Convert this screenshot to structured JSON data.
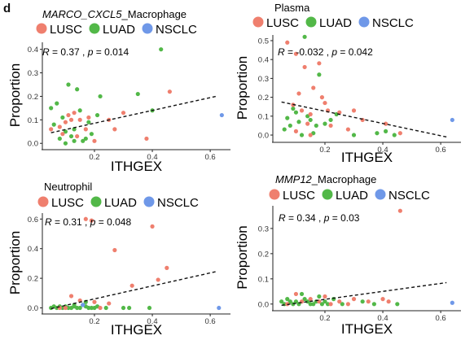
{
  "panel_label": "d",
  "legend": [
    {
      "name": "LUSC",
      "color": "#ef7f6e"
    },
    {
      "name": "LUAD",
      "color": "#52b848"
    },
    {
      "name": "NSCLC",
      "color": "#6f98e8"
    }
  ],
  "chart_data": [
    {
      "type": "scatter",
      "title_italic": "MARCO_CXCL5",
      "title_rest": "_Macrophage",
      "annotation_parts": [
        "R",
        " = 0.37 , ",
        "p",
        " = 0.014"
      ],
      "xlabel": "ITHGEX",
      "ylabel": "Proportion",
      "xlim": [
        0.02,
        0.67
      ],
      "ylim": [
        -0.02,
        0.43
      ],
      "xticks": [
        "0.2",
        "0.4",
        "0.6"
      ],
      "yticks": [
        "0.0",
        "0.1",
        "0.2",
        "0.3",
        "0.4"
      ],
      "xtick_values": [
        0.2,
        0.4,
        0.6
      ],
      "ytick_values": [
        0,
        0.1,
        0.2,
        0.3,
        0.4
      ],
      "trend": [
        [
          0.05,
          0.045
        ],
        [
          0.62,
          0.2
        ]
      ],
      "series": [
        {
          "name": "LUSC",
          "points": [
            [
              0.05,
              0.06
            ],
            [
              0.08,
              0.07
            ],
            [
              0.09,
              0.04
            ],
            [
              0.1,
              0.09
            ],
            [
              0.11,
              0.12
            ],
            [
              0.12,
              0.1
            ],
            [
              0.13,
              0.13
            ],
            [
              0.14,
              0.03
            ],
            [
              0.15,
              0.1
            ],
            [
              0.17,
              0.06
            ],
            [
              0.18,
              0.11
            ],
            [
              0.25,
              0.1
            ],
            [
              0.27,
              0.06
            ],
            [
              0.3,
              0.13
            ],
            [
              0.38,
              0.02
            ],
            [
              0.46,
              0.22
            ],
            [
              0.2,
              0.01
            ]
          ]
        },
        {
          "name": "LUAD",
          "points": [
            [
              0.05,
              0.15
            ],
            [
              0.06,
              0.08
            ],
            [
              0.07,
              0.17
            ],
            [
              0.08,
              0.02
            ],
            [
              0.09,
              0.11
            ],
            [
              0.1,
              0.05
            ],
            [
              0.1,
              0.0
            ],
            [
              0.11,
              0.25
            ],
            [
              0.12,
              0.03
            ],
            [
              0.13,
              0.06
            ],
            [
              0.14,
              0.23
            ],
            [
              0.15,
              0.14
            ],
            [
              0.16,
              0.01
            ],
            [
              0.17,
              0.02
            ],
            [
              0.18,
              0.09
            ],
            [
              0.19,
              0.04
            ],
            [
              0.21,
              0.12
            ],
            [
              0.22,
              0.2
            ],
            [
              0.35,
              0.21
            ],
            [
              0.43,
              0.4
            ],
            [
              0.4,
              0.14
            ],
            [
              0.13,
              0.01
            ]
          ]
        },
        {
          "name": "NSCLC",
          "points": [
            [
              0.64,
              0.12
            ]
          ]
        }
      ]
    },
    {
      "type": "scatter",
      "title_italic": "",
      "title_rest": "Plasma",
      "annotation_parts": [
        "R",
        " = -0.032 , ",
        "p",
        " = 0.042"
      ],
      "xlabel": "ITHGEX",
      "ylabel": "Proportion",
      "xlim": [
        0.02,
        0.67
      ],
      "ylim": [
        -0.03,
        0.53
      ],
      "xticks": [
        "0.2",
        "0.4",
        "0.6"
      ],
      "yticks": [
        "0.0",
        "0.1",
        "0.2",
        "0.3",
        "0.4",
        "0.5"
      ],
      "xtick_values": [
        0.2,
        0.4,
        0.6
      ],
      "ytick_values": [
        0,
        0.1,
        0.2,
        0.3,
        0.4,
        0.5
      ],
      "trend": [
        [
          0.05,
          0.175
        ],
        [
          0.62,
          -0.01
        ]
      ],
      "series": [
        {
          "name": "LUSC",
          "points": [
            [
              0.07,
              0.49
            ],
            [
              0.09,
              0.16
            ],
            [
              0.1,
              0.43
            ],
            [
              0.11,
              0.22
            ],
            [
              0.12,
              0.13
            ],
            [
              0.13,
              0.36
            ],
            [
              0.14,
              0.06
            ],
            [
              0.15,
              0.11
            ],
            [
              0.16,
              0.25
            ],
            [
              0.18,
              0.38
            ],
            [
              0.19,
              0.2
            ],
            [
              0.2,
              0.17
            ],
            [
              0.21,
              0.13
            ],
            [
              0.22,
              0.05
            ],
            [
              0.25,
              0.12
            ],
            [
              0.28,
              0.03
            ],
            [
              0.3,
              0.13
            ],
            [
              0.33,
              0.08
            ],
            [
              0.41,
              0.06
            ],
            [
              0.46,
              0.01
            ],
            [
              0.1,
              0.02
            ],
            [
              0.15,
              0.0
            ]
          ]
        },
        {
          "name": "LUAD",
          "points": [
            [
              0.06,
              0.03
            ],
            [
              0.07,
              0.09
            ],
            [
              0.08,
              0.05
            ],
            [
              0.09,
              0.14
            ],
            [
              0.1,
              0.12
            ],
            [
              0.11,
              0.07
            ],
            [
              0.13,
              0.52
            ],
            [
              0.14,
              0.1
            ],
            [
              0.15,
              0.08
            ],
            [
              0.16,
              0.01
            ],
            [
              0.17,
              0.05
            ],
            [
              0.18,
              0.32
            ],
            [
              0.2,
              0.06
            ],
            [
              0.22,
              0.08
            ],
            [
              0.24,
              0.11
            ],
            [
              0.38,
              0.01
            ],
            [
              0.41,
              0.02
            ],
            [
              0.44,
              0.0
            ],
            [
              0.3,
              0.0
            ],
            [
              0.12,
              0.0
            ]
          ]
        },
        {
          "name": "NSCLC",
          "points": [
            [
              0.64,
              0.08
            ]
          ]
        }
      ]
    },
    {
      "type": "scatter",
      "title_italic": "",
      "title_rest": "Neutrophil",
      "annotation_parts": [
        "R",
        " = 0.31 , ",
        "p",
        " = 0.048"
      ],
      "xlabel": "ITHGEX",
      "ylabel": "Proportion",
      "xlim": [
        0.02,
        0.67
      ],
      "ylim": [
        -0.03,
        0.64
      ],
      "xticks": [
        "0.2",
        "0.4",
        "0.6"
      ],
      "yticks": [
        "0.0",
        "0.2",
        "0.4",
        "0.6"
      ],
      "xtick_values": [
        0.2,
        0.4,
        0.6
      ],
      "ytick_values": [
        0,
        0.2,
        0.4,
        0.6
      ],
      "trend": [
        [
          0.05,
          -0.005
        ],
        [
          0.62,
          0.245
        ]
      ],
      "series": [
        {
          "name": "LUSC",
          "points": [
            [
              0.17,
              0.6
            ],
            [
              0.19,
              0.59
            ],
            [
              0.27,
              0.39
            ],
            [
              0.4,
              0.55
            ],
            [
              0.45,
              0.27
            ],
            [
              0.33,
              0.15
            ],
            [
              0.42,
              0.19
            ],
            [
              0.12,
              0.08
            ],
            [
              0.15,
              0.05
            ],
            [
              0.2,
              0.04
            ],
            [
              0.25,
              0.03
            ],
            [
              0.1,
              0.0
            ],
            [
              0.08,
              0.0
            ],
            [
              0.22,
              0.0
            ]
          ]
        },
        {
          "name": "LUAD",
          "points": [
            [
              0.05,
              0.0
            ],
            [
              0.06,
              0.01
            ],
            [
              0.07,
              0.0
            ],
            [
              0.08,
              0.01
            ],
            [
              0.09,
              0.0
            ],
            [
              0.1,
              0.01
            ],
            [
              0.11,
              0.0
            ],
            [
              0.12,
              0.0
            ],
            [
              0.13,
              0.01
            ],
            [
              0.14,
              0.0
            ],
            [
              0.15,
              0.0
            ],
            [
              0.16,
              0.02
            ],
            [
              0.17,
              0.01
            ],
            [
              0.18,
              0.0
            ],
            [
              0.19,
              0.0
            ],
            [
              0.2,
              0.0
            ],
            [
              0.21,
              0.01
            ],
            [
              0.24,
              0.0
            ],
            [
              0.3,
              0.0
            ],
            [
              0.32,
              0.0
            ],
            [
              0.39,
              0.0
            ],
            [
              0.17,
              0.04
            ],
            [
              0.13,
              0.02
            ]
          ]
        },
        {
          "name": "NSCLC",
          "points": [
            [
              0.63,
              0.0
            ],
            [
              0.16,
              0.02
            ]
          ]
        }
      ]
    },
    {
      "type": "scatter",
      "title_italic": "MMP12",
      "title_rest": "_Macrophage",
      "annotation_parts": [
        "R",
        " = 0.34 , ",
        "p",
        " = 0.03"
      ],
      "xlabel": "ITHGEX",
      "ylabel": "Proportion",
      "xlim": [
        0.02,
        0.67
      ],
      "ylim": [
        -0.02,
        0.39
      ],
      "xticks": [
        "0.2",
        "0.4",
        "0.6"
      ],
      "yticks": [
        "0.0",
        "0.1",
        "0.2",
        "0.3"
      ],
      "xtick_values": [
        0.2,
        0.4,
        0.6
      ],
      "ytick_values": [
        0,
        0.1,
        0.2,
        0.3
      ],
      "trend": [
        [
          0.05,
          -0.005
        ],
        [
          0.62,
          0.085
        ]
      ],
      "series": [
        {
          "name": "LUSC",
          "points": [
            [
              0.46,
              0.37
            ],
            [
              0.1,
              0.04
            ],
            [
              0.12,
              0.01
            ],
            [
              0.15,
              0.02
            ],
            [
              0.18,
              0.01
            ],
            [
              0.2,
              0.03
            ],
            [
              0.22,
              0.0
            ],
            [
              0.25,
              0.01
            ],
            [
              0.3,
              0.02
            ],
            [
              0.35,
              0.01
            ],
            [
              0.4,
              0.02
            ],
            [
              0.07,
              0.0
            ],
            [
              0.42,
              0.01
            ],
            [
              0.28,
              0.0
            ]
          ]
        },
        {
          "name": "LUAD",
          "points": [
            [
              0.05,
              0.01
            ],
            [
              0.06,
              0.0
            ],
            [
              0.07,
              0.02
            ],
            [
              0.08,
              0.01
            ],
            [
              0.09,
              0.0
            ],
            [
              0.1,
              0.01
            ],
            [
              0.11,
              0.0
            ],
            [
              0.12,
              0.04
            ],
            [
              0.13,
              0.02
            ],
            [
              0.14,
              0.01
            ],
            [
              0.15,
              0.0
            ],
            [
              0.16,
              0.0
            ],
            [
              0.17,
              0.01
            ],
            [
              0.18,
              0.03
            ],
            [
              0.19,
              0.0
            ],
            [
              0.2,
              0.01
            ],
            [
              0.21,
              0.0
            ],
            [
              0.23,
              0.02
            ],
            [
              0.26,
              0.0
            ],
            [
              0.33,
              0.01
            ],
            [
              0.37,
              0.0
            ],
            [
              0.45,
              0.0
            ]
          ]
        },
        {
          "name": "NSCLC",
          "points": [
            [
              0.64,
              0.005
            ]
          ]
        }
      ]
    }
  ]
}
